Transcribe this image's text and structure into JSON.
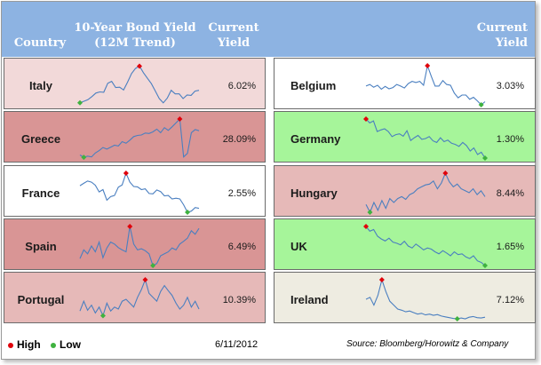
{
  "header": {
    "country": "Country",
    "bond_title_line1": "10-Year Bond Yield",
    "bond_title_line2": "(12M Trend)",
    "current_line1": "Current",
    "current_line2": "Yield",
    "right_current_line1": "Current",
    "right_current_line2": "Yield"
  },
  "colors": {
    "header_bg": "#8db3e2",
    "high_marker": "#e0000a",
    "low_marker": "#3fb23f",
    "spark_line": "#4a7fc0",
    "light_pink": "#f2d9d9",
    "dark_rose": "#d99595",
    "mid_rose": "#e6b9b8",
    "green": "#a6f59a",
    "white": "#ffffff",
    "beige": "#eeece1"
  },
  "chart_data": {
    "type": "line",
    "title": "10-Year Bond Yield (12M Trend)",
    "as_of": "6/11/2012",
    "source": "Source: Bloomberg/Horowitz & Company",
    "legend": [
      "High",
      "Low"
    ],
    "countries": [
      {
        "name": "Italy",
        "yield": "6.02%",
        "bg": "light_pink",
        "series": [
          5,
          9,
          13,
          21,
          30,
          33,
          32,
          55,
          60,
          44,
          45,
          38,
          58,
          80,
          93,
          99,
          82,
          68,
          54,
          35,
          16,
          5,
          17,
          37,
          28,
          28,
          16,
          25,
          24,
          35,
          37
        ]
      },
      {
        "name": "Greece",
        "yield": "28.09%",
        "bg": "dark_rose",
        "series": [
          8,
          2,
          5,
          3,
          13,
          19,
          27,
          23,
          28,
          33,
          31,
          42,
          38,
          46,
          55,
          58,
          59,
          64,
          63,
          67,
          74,
          65,
          78,
          71,
          80,
          90,
          100,
          3,
          12,
          65,
          73,
          70
        ]
      },
      {
        "name": "France",
        "yield": "2.55%",
        "bg": "white",
        "series": [
          68,
          74,
          80,
          77,
          69,
          52,
          58,
          31,
          40,
          43,
          64,
          70,
          100,
          77,
          66,
          65,
          58,
          60,
          48,
          47,
          57,
          53,
          42,
          43,
          34,
          36,
          34,
          19,
          0,
          3,
          12,
          10
        ]
      },
      {
        "name": "Spain",
        "yield": "6.49%",
        "bg": "dark_rose",
        "series": [
          18,
          40,
          30,
          50,
          35,
          60,
          20,
          45,
          60,
          55,
          46,
          40,
          35,
          100,
          55,
          40,
          43,
          38,
          30,
          0,
          5,
          25,
          30,
          35,
          45,
          40,
          55,
          62,
          70,
          89,
          80,
          95
        ]
      },
      {
        "name": "Portugal",
        "yield": "10.39%",
        "bg": "mid_rose",
        "series": [
          20,
          45,
          22,
          35,
          15,
          30,
          8,
          40,
          20,
          30,
          25,
          45,
          50,
          40,
          30,
          55,
          75,
          100,
          65,
          55,
          45,
          70,
          85,
          72,
          60,
          40,
          25,
          35,
          55,
          30,
          45,
          25
        ]
      },
      {
        "name": "Belgium",
        "yield": "3.03%",
        "bg": "white",
        "series": [
          48,
          52,
          45,
          50,
          40,
          47,
          41,
          44,
          52,
          48,
          43,
          54,
          60,
          57,
          60,
          50,
          100,
          73,
          48,
          48,
          62,
          52,
          50,
          30,
          18,
          25,
          25,
          14,
          19,
          10,
          0,
          8
        ]
      },
      {
        "name": "Germany",
        "yield": "1.30%",
        "bg": "green",
        "series": [
          100,
          90,
          95,
          68,
          72,
          75,
          68,
          55,
          60,
          62,
          56,
          70,
          45,
          52,
          58,
          48,
          50,
          55,
          44,
          40,
          52,
          42,
          46,
          38,
          35,
          30,
          40,
          32,
          18,
          26,
          9,
          15,
          0
        ]
      },
      {
        "name": "Hungary",
        "yield": "8.44%",
        "bg": "mid_rose",
        "series": [
          20,
          0,
          25,
          5,
          30,
          10,
          35,
          25,
          35,
          40,
          33,
          45,
          50,
          60,
          65,
          70,
          72,
          80,
          60,
          75,
          100,
          78,
          65,
          72,
          60,
          55,
          50,
          60,
          45,
          55,
          40
        ]
      },
      {
        "name": "UK",
        "yield": "1.65%",
        "bg": "green",
        "series": [
          100,
          88,
          92,
          75,
          68,
          63,
          70,
          60,
          57,
          53,
          62,
          50,
          45,
          55,
          48,
          40,
          45,
          42,
          35,
          30,
          38,
          32,
          25,
          35,
          28,
          30,
          22,
          18,
          25,
          12,
          8,
          0
        ]
      },
      {
        "name": "Ireland",
        "yield": "7.12%",
        "bg": "beige",
        "series": [
          50,
          55,
          35,
          60,
          100,
          70,
          45,
          35,
          25,
          22,
          18,
          20,
          16,
          12,
          14,
          10,
          12,
          9,
          11,
          7,
          5,
          3,
          1,
          0,
          2,
          0,
          4,
          6,
          3,
          2,
          4
        ]
      }
    ]
  }
}
